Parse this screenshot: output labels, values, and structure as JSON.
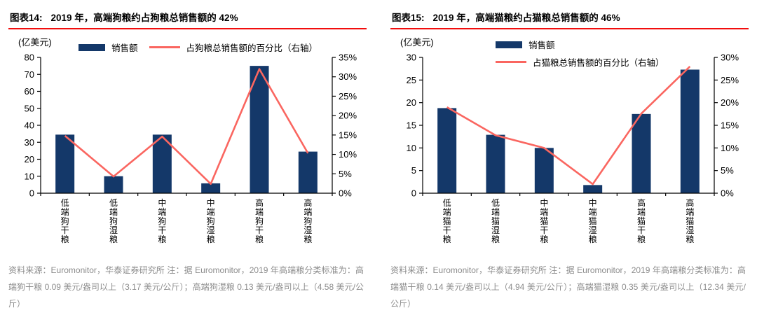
{
  "colors": {
    "bar": "#143869",
    "line": "#fa6660",
    "title_underline": "#f20d0d",
    "footer_text": "#8c8c8c",
    "axis": "#000000"
  },
  "charts": [
    {
      "title_label": "图表14:",
      "title": "2019 年，高端狗粮约占狗粮总销售额的 42%",
      "unit": "(亿美元)",
      "legend": [
        {
          "type": "bar",
          "label": "销售额"
        },
        {
          "type": "line",
          "label": "占狗粮总销售额的百分比（右轴）"
        }
      ],
      "source_note": "资料来源：Euromonitor，华泰证券研究所  注：据 Euromonitor，2019 年高端粮分类标准为：高端狗干粮 0.09 美元/盎司以上（3.17 美元/公斤）；高端狗湿粮 0.13 美元/盎司以上（4.58 美元/公斤）"
    },
    {
      "title_label": "图表15:",
      "title": "2019 年，高端猫粮约占猫粮总销售额的 46%",
      "unit": "(亿美元)",
      "legend": [
        {
          "type": "bar",
          "label": "销售额"
        },
        {
          "type": "line",
          "label": "占猫粮总销售额的百分比（右轴）"
        }
      ],
      "source_note": "资料来源：Euromonitor，华泰证券研究所  注：据 Euromonitor，2019 年高端粮分类标准为：高端猫干粮 0.14 美元/盎司以上（4.94 美元/公斤）；高端猫湿粮 0.35 美元/盎司以上（12.34 美元/公斤）"
    }
  ],
  "chart_data": [
    {
      "type": "bar",
      "title": "图表14: 2019 年，高端狗粮约占狗粮总销售额的 42%",
      "ylabel": "(亿美元)",
      "categories": [
        "低端狗干粮",
        "低端狗湿粮",
        "中端狗干粮",
        "中端狗湿粮",
        "高端狗干粮",
        "高端狗湿粮"
      ],
      "series": [
        {
          "name": "销售额",
          "type": "bar",
          "axis": "left",
          "values": [
            34.5,
            10,
            34.5,
            5.8,
            75,
            24.5
          ]
        },
        {
          "name": "占狗粮总销售额的百分比（右轴）",
          "type": "line",
          "axis": "right",
          "values": [
            14.8,
            4.3,
            14.6,
            2.4,
            32,
            10.3
          ]
        }
      ],
      "left_axis": {
        "min": 0,
        "max": 80,
        "ticks": [
          0,
          10,
          20,
          30,
          40,
          50,
          60,
          70,
          80
        ]
      },
      "right_axis": {
        "min": 0,
        "max": 35,
        "ticks": [
          "0%",
          "5%",
          "10%",
          "15%",
          "20%",
          "25%",
          "30%",
          "35%"
        ]
      },
      "grid": false,
      "legend_position": "top"
    },
    {
      "type": "bar",
      "title": "图表15: 2019 年，高端猫粮约占猫粮总销售额的 46%",
      "ylabel": "(亿美元)",
      "categories": [
        "低端猫干粮",
        "低端猫湿粮",
        "中端猫干粮",
        "中端猫湿粮",
        "高端猫干粮",
        "高端猫湿粮"
      ],
      "series": [
        {
          "name": "销售额",
          "type": "bar",
          "axis": "left",
          "values": [
            18.8,
            12.9,
            10,
            1.8,
            17.5,
            27.3
          ]
        },
        {
          "name": "占猫粮总销售额的百分比（右轴）",
          "type": "line",
          "axis": "right",
          "values": [
            19,
            12.8,
            10,
            2,
            17.6,
            28
          ]
        }
      ],
      "left_axis": {
        "min": 0,
        "max": 30,
        "ticks": [
          0,
          5,
          10,
          15,
          20,
          25,
          30
        ]
      },
      "right_axis": {
        "min": 0,
        "max": 30,
        "ticks": [
          "0%",
          "5%",
          "10%",
          "15%",
          "20%",
          "25%",
          "30%"
        ]
      },
      "grid": false,
      "legend_position": "top"
    }
  ]
}
